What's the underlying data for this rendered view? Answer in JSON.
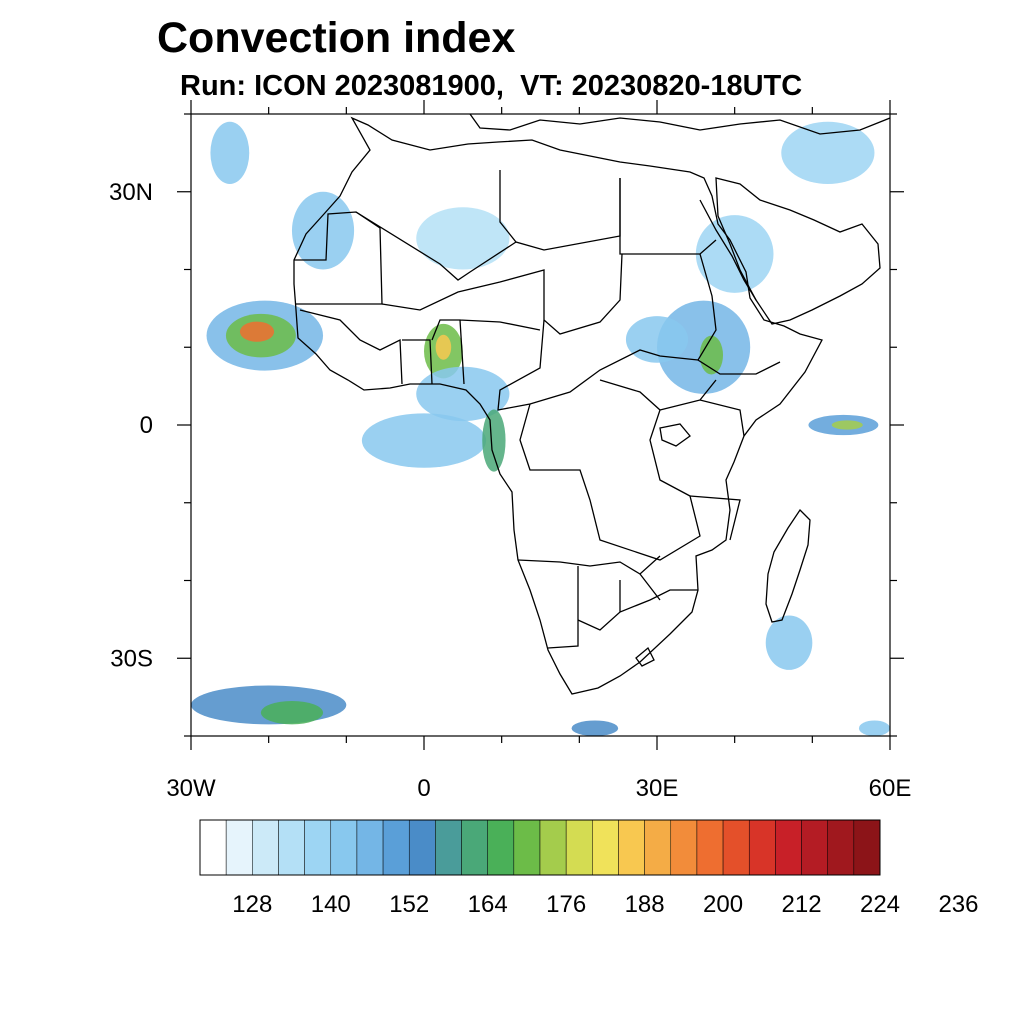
{
  "title": "Convection index",
  "subtitle": "Run: ICON 2023081900,  VT: 20230820-18UTC",
  "map": {
    "region": "Africa",
    "lon_range": [
      -30,
      60
    ],
    "lat_range": [
      -40,
      40
    ],
    "lat_labels": [
      {
        "value": 30,
        "text": "30N"
      },
      {
        "value": 0,
        "text": "0"
      },
      {
        "value": -30,
        "text": "30S"
      }
    ],
    "lon_labels": [
      {
        "value": -30,
        "text": "30W"
      },
      {
        "value": 0,
        "text": "0"
      },
      {
        "value": 30,
        "text": "30E"
      },
      {
        "value": 60,
        "text": "60E"
      }
    ],
    "minor_lat_ticks": [
      -40,
      -20,
      -10,
      10,
      20,
      40
    ],
    "minor_lon_ticks": [
      -20,
      -10,
      10,
      20,
      40,
      50
    ]
  },
  "colorbar": {
    "colors": [
      "#ffffff",
      "#e6f4fc",
      "#cceaf8",
      "#b4e0f6",
      "#9dd5f3",
      "#88c8ee",
      "#74b6e6",
      "#5a9fd8",
      "#4a8cc8",
      "#4a9c9a",
      "#4aa878",
      "#4ab058",
      "#6cbc48",
      "#a4cc4c",
      "#d4dc52",
      "#f0e25a",
      "#f8c850",
      "#f4ac46",
      "#f28c3a",
      "#ee6e30",
      "#e4502a",
      "#d83428",
      "#c82028",
      "#b41c24",
      "#a0181e",
      "#8c1418"
    ],
    "labels": [
      "128",
      "140",
      "152",
      "164",
      "176",
      "188",
      "200",
      "212",
      "224",
      "236"
    ],
    "label_start_index": 2,
    "label_step": 3
  },
  "convection_areas": [
    {
      "lon": -20.5,
      "lat": 11.5,
      "rx": 7.5,
      "ry": 4.5,
      "level": 6
    },
    {
      "lon": -21,
      "lat": 11.5,
      "rx": 4.5,
      "ry": 2.8,
      "level": 12
    },
    {
      "lon": -21.5,
      "lat": 12,
      "rx": 2.2,
      "ry": 1.3,
      "level": 19
    },
    {
      "lon": 2.5,
      "lat": 9.5,
      "rx": 2.5,
      "ry": 3.5,
      "level": 12
    },
    {
      "lon": 2.5,
      "lat": 10,
      "rx": 1,
      "ry": 1.6,
      "level": 16
    },
    {
      "lon": 5,
      "lat": 4,
      "rx": 6,
      "ry": 3.5,
      "level": 5
    },
    {
      "lon": 0,
      "lat": -2,
      "rx": 8,
      "ry": 3.5,
      "level": 5
    },
    {
      "lon": 9,
      "lat": -2,
      "rx": 1.5,
      "ry": 4,
      "level": 10
    },
    {
      "lon": 36,
      "lat": 10,
      "rx": 6,
      "ry": 6,
      "level": 6
    },
    {
      "lon": 37,
      "lat": 9,
      "rx": 1.5,
      "ry": 2.5,
      "level": 12
    },
    {
      "lon": 30,
      "lat": 11,
      "rx": 4,
      "ry": 3,
      "level": 5
    },
    {
      "lon": 40,
      "lat": 22,
      "rx": 5,
      "ry": 5,
      "level": 4
    },
    {
      "lon": 54,
      "lat": 0,
      "rx": 4.5,
      "ry": 1.3,
      "level": 7
    },
    {
      "lon": 54.5,
      "lat": 0,
      "rx": 2,
      "ry": 0.6,
      "level": 13
    },
    {
      "lon": 47,
      "lat": -28,
      "rx": 3,
      "ry": 3.5,
      "level": 5
    },
    {
      "lon": -20,
      "lat": -36,
      "rx": 10,
      "ry": 2.5,
      "level": 8
    },
    {
      "lon": -17,
      "lat": -37,
      "rx": 4,
      "ry": 1.5,
      "level": 11
    },
    {
      "lon": -25,
      "lat": 35,
      "rx": 2.5,
      "ry": 4,
      "level": 5
    },
    {
      "lon": -13,
      "lat": 25,
      "rx": 4,
      "ry": 5,
      "level": 5
    },
    {
      "lon": 5,
      "lat": 24,
      "rx": 6,
      "ry": 4,
      "level": 3
    },
    {
      "lon": 52,
      "lat": 35,
      "rx": 6,
      "ry": 4,
      "level": 4
    },
    {
      "lon": 22,
      "lat": -39,
      "rx": 3,
      "ry": 1,
      "level": 8
    },
    {
      "lon": 58,
      "lat": -39,
      "rx": 2,
      "ry": 1,
      "level": 5
    }
  ]
}
